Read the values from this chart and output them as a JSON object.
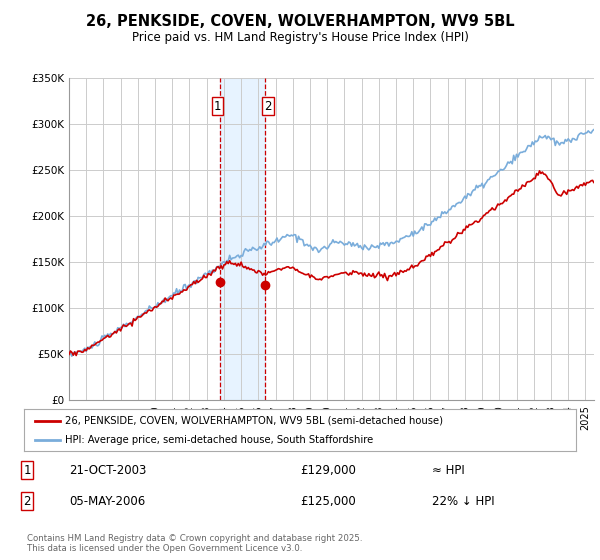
{
  "title": "26, PENKSIDE, COVEN, WOLVERHAMPTON, WV9 5BL",
  "subtitle": "Price paid vs. HM Land Registry's House Price Index (HPI)",
  "ylim": [
    0,
    350000
  ],
  "yticks": [
    0,
    50000,
    100000,
    150000,
    200000,
    250000,
    300000,
    350000
  ],
  "ytick_labels": [
    "£0",
    "£50K",
    "£100K",
    "£150K",
    "£200K",
    "£250K",
    "£300K",
    "£350K"
  ],
  "bg_color": "#ffffff",
  "grid_color": "#cccccc",
  "sale1_date": 2003.8,
  "sale1_price": 129000,
  "sale2_date": 2006.37,
  "sale2_price": 125000,
  "highlight_color": "#ddeeff",
  "red_line_color": "#cc0000",
  "blue_line_color": "#7aaddb",
  "legend1_text": "26, PENKSIDE, COVEN, WOLVERHAMPTON, WV9 5BL (semi-detached house)",
  "legend2_text": "HPI: Average price, semi-detached house, South Staffordshire",
  "table_row1": [
    "1",
    "21-OCT-2003",
    "£129,000",
    "≈ HPI"
  ],
  "table_row2": [
    "2",
    "05-MAY-2006",
    "£125,000",
    "22% ↓ HPI"
  ],
  "footer": "Contains HM Land Registry data © Crown copyright and database right 2025.\nThis data is licensed under the Open Government Licence v3.0.",
  "xmin": 1995,
  "xmax": 2025.5
}
